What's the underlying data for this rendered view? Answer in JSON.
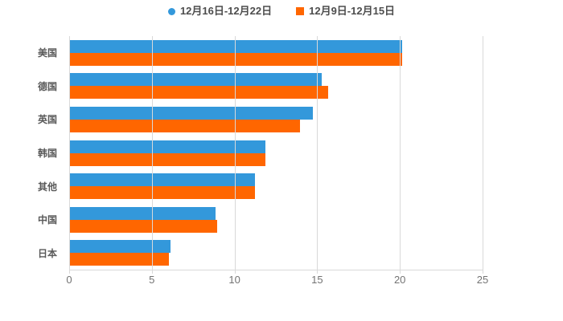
{
  "legend": {
    "items": [
      {
        "label": "12月16日-12月22日",
        "color": "#3398db",
        "shape": "circle"
      },
      {
        "label": "12月9日-12月15日",
        "color": "#ff6600",
        "shape": "square"
      }
    ]
  },
  "colors": {
    "series_blue": "#3398db",
    "series_orange": "#ff6600",
    "grid": "#d9d9d9",
    "axis": "#d9d9d9",
    "x_tick_label": "#737373",
    "category_label": "#595959",
    "legend_label": "#4d4d4d",
    "background": "#ffffff"
  },
  "chart_data": {
    "type": "bar",
    "orientation": "horizontal",
    "title": "",
    "xlabel": "",
    "ylabel": "",
    "categories": [
      "美国",
      "德国",
      "英国",
      "韩国",
      "其他",
      "中国",
      "日本"
    ],
    "series": [
      {
        "name": "12月16日-12月22日",
        "color": "#3398db",
        "marker": "circle",
        "values": [
          20.1,
          15.2,
          14.7,
          11.8,
          11.2,
          8.8,
          6.1
        ]
      },
      {
        "name": "12月9日-12月15日",
        "color": "#ff6600",
        "marker": "square",
        "values": [
          20.1,
          15.6,
          13.9,
          11.8,
          11.2,
          8.9,
          6.0
        ]
      }
    ],
    "xlim": [
      0,
      25
    ],
    "x_ticks": [
      0,
      5,
      10,
      15,
      20,
      25
    ],
    "grid": "vertical-only",
    "legend_position": "top-center"
  }
}
